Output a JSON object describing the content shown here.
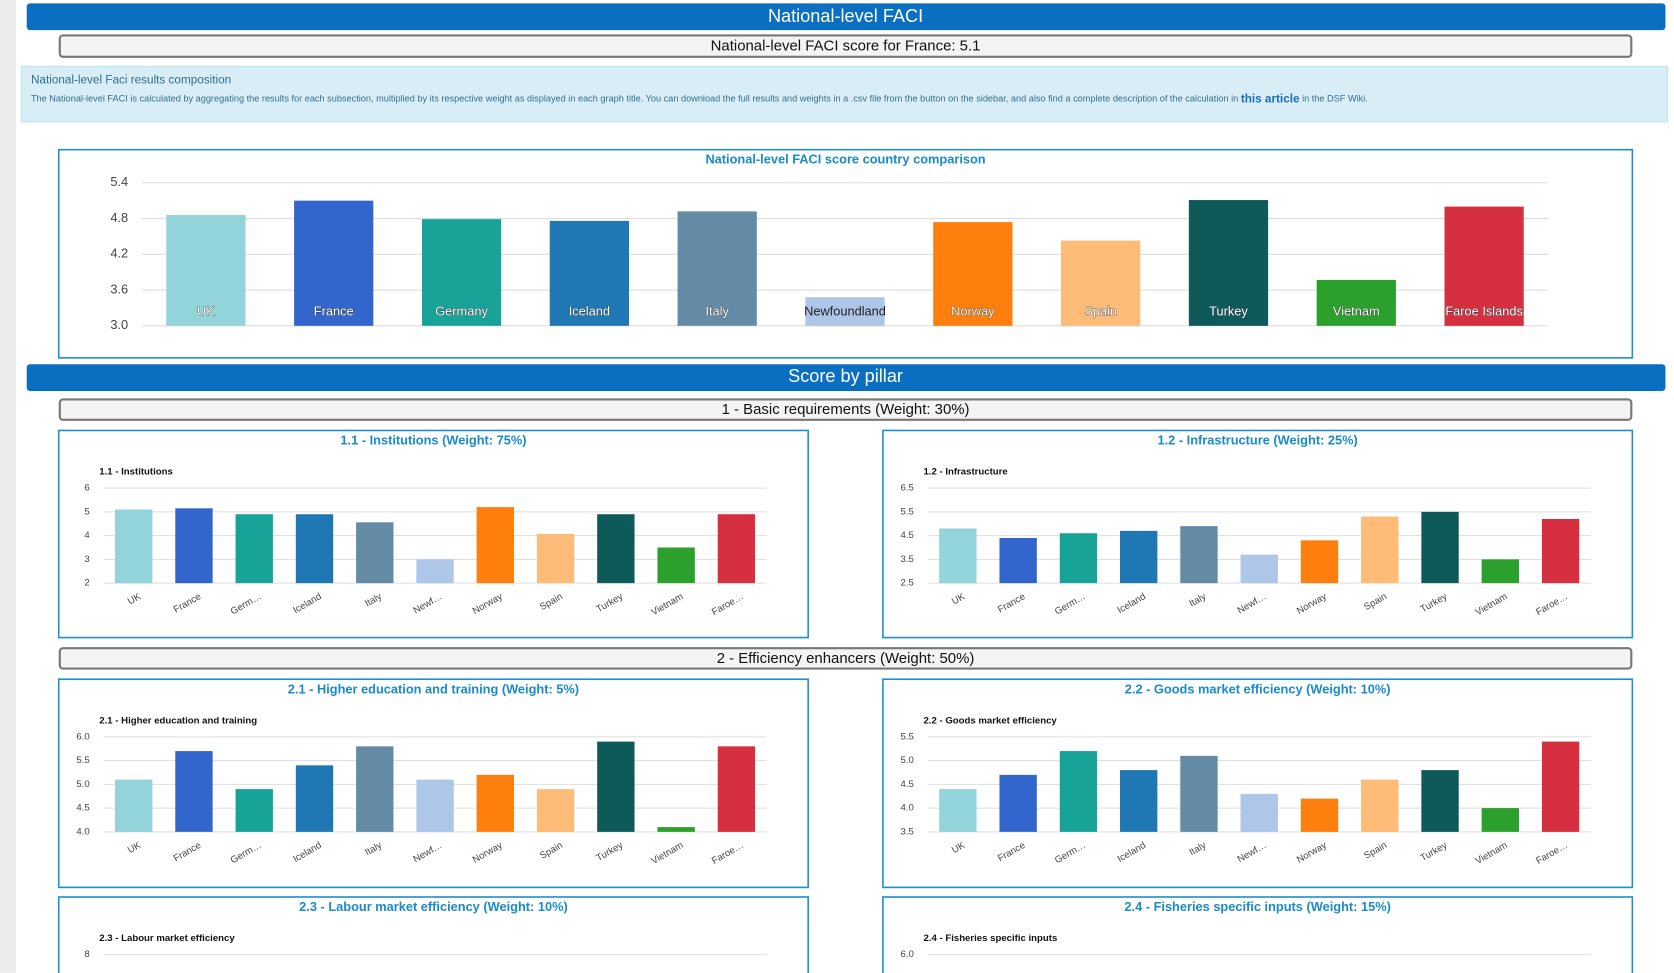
{
  "header": {
    "title": "National-level FACI",
    "subtitle": "National-level FACI score for France: 5.1"
  },
  "info": {
    "title": "National-level Faci results composition",
    "text_before": "The National-level FACI is calculated by aggregating the results for each subsection, multiplied by its respective weight as displayed in each graph title. You can download the full results and weights in a .csv file from the button on the sidebar, and also find a complete description of the calculation in ",
    "link": "this article",
    "text_after": " in the DSF Wiki."
  },
  "sections": {
    "title": "Score by pillar",
    "pillar_1": "1 - Basic requirements (Weight: 30%)",
    "pillar_2": "2 - Efficiency enhancers (Weight: 50%)"
  },
  "chart_data": [
    {
      "type": "bar",
      "title": "National-level FACI score country comparison",
      "categories": [
        "UK",
        "France",
        "Germany",
        "Iceland",
        "Italy",
        "Newfoundland",
        "Norway",
        "Spain",
        "Turkey",
        "Vietnam",
        "Faroe Islands"
      ],
      "values": [
        4.86,
        5.1,
        4.79,
        4.76,
        4.92,
        3.48,
        4.74,
        4.43,
        5.11,
        3.77,
        5.0
      ],
      "colors": [
        "#93d3da",
        "#3366cc",
        "#17a398",
        "#1f77b4",
        "#638ba6",
        "#aec7e8",
        "#ff7f0e",
        "#ffbb78",
        "#0e5a5a",
        "#2ca02c",
        "#d62f3f"
      ],
      "ylim": [
        3,
        5.4
      ],
      "yticks": [
        {
          "value": 3,
          "label": "3.0"
        },
        3.6,
        4.2,
        4.8,
        5.4
      ],
      "grid": true
    },
    {
      "type": "bar",
      "title": "1.1 - Institutions (Weight: 75%)",
      "subtitle": "1.1 - Institutions",
      "categories": [
        "UK",
        "France",
        "Germ…",
        "Iceland",
        "Italy",
        "Newf…",
        "Norway",
        "Spain",
        "Turkey",
        "Vietnam",
        "Faroe…"
      ],
      "values": [
        5.1,
        5.15,
        4.9,
        4.9,
        4.56,
        3.0,
        5.2,
        4.07,
        4.9,
        3.5,
        4.9
      ],
      "colors": [
        "#93d3da",
        "#3366cc",
        "#17a398",
        "#1f77b4",
        "#638ba6",
        "#aec7e8",
        "#ff7f0e",
        "#ffbb78",
        "#0e5a5a",
        "#2ca02c",
        "#d62f3f"
      ],
      "ylim": [
        2,
        6
      ],
      "yticks": [
        2,
        3,
        4,
        5,
        6
      ],
      "grid": true
    },
    {
      "type": "bar",
      "title": "1.2 - Infrastructure (Weight: 25%)",
      "subtitle": "1.2 - Infrastructure",
      "categories": [
        "UK",
        "France",
        "Germ…",
        "Iceland",
        "Italy",
        "Newf…",
        "Norway",
        "Spain",
        "Turkey",
        "Vietnam",
        "Faroe…"
      ],
      "values": [
        4.8,
        4.4,
        4.6,
        4.7,
        4.9,
        3.7,
        4.3,
        5.3,
        5.5,
        3.5,
        5.2
      ],
      "colors": [
        "#93d3da",
        "#3366cc",
        "#17a398",
        "#1f77b4",
        "#638ba6",
        "#aec7e8",
        "#ff7f0e",
        "#ffbb78",
        "#0e5a5a",
        "#2ca02c",
        "#d62f3f"
      ],
      "ylim": [
        2.5,
        6.5
      ],
      "yticks": [
        2.5,
        3.5,
        4.5,
        5.5,
        6.5
      ],
      "grid": true
    },
    {
      "type": "bar",
      "title": "2.1 - Higher education and training (Weight: 5%)",
      "subtitle": "2.1 - Higher education and training",
      "categories": [
        "UK",
        "France",
        "Germ…",
        "Iceland",
        "Italy",
        "Newf…",
        "Norway",
        "Spain",
        "Turkey",
        "Vietnam",
        "Faroe…"
      ],
      "values": [
        5.1,
        5.7,
        4.9,
        5.4,
        5.8,
        5.1,
        5.2,
        4.9,
        5.9,
        4.1,
        5.8
      ],
      "colors": [
        "#93d3da",
        "#3366cc",
        "#17a398",
        "#1f77b4",
        "#638ba6",
        "#aec7e8",
        "#ff7f0e",
        "#ffbb78",
        "#0e5a5a",
        "#2ca02c",
        "#d62f3f"
      ],
      "ylim": [
        4,
        6
      ],
      "yticks": [
        {
          "value": 4,
          "label": "4.0"
        },
        4.5,
        {
          "value": 5,
          "label": "5.0"
        },
        5.5,
        {
          "value": 6,
          "label": "6.0"
        }
      ],
      "grid": true
    },
    {
      "type": "bar",
      "title": "2.2 - Goods market efficiency (Weight: 10%)",
      "subtitle": "2.2 - Goods market efficiency",
      "categories": [
        "UK",
        "France",
        "Germ…",
        "Iceland",
        "Italy",
        "Newf…",
        "Norway",
        "Spain",
        "Turkey",
        "Vietnam",
        "Faroe…"
      ],
      "values": [
        4.4,
        4.7,
        5.2,
        4.8,
        5.1,
        4.3,
        4.2,
        4.6,
        4.8,
        4.0,
        5.4
      ],
      "colors": [
        "#93d3da",
        "#3366cc",
        "#17a398",
        "#1f77b4",
        "#638ba6",
        "#aec7e8",
        "#ff7f0e",
        "#ffbb78",
        "#0e5a5a",
        "#2ca02c",
        "#d62f3f"
      ],
      "ylim": [
        3.5,
        5.5
      ],
      "yticks": [
        3.5,
        {
          "value": 4,
          "label": "4.0"
        },
        4.5,
        {
          "value": 5,
          "label": "5.0"
        },
        5.5
      ],
      "grid": true
    },
    {
      "type": "bar",
      "title": "2.3 - Labour market efficiency (Weight: 10%)",
      "subtitle": "2.3 - Labour market efficiency",
      "yticks": [
        8
      ],
      "grid": true
    },
    {
      "type": "bar",
      "title": "2.4 - Fisheries specific inputs (Weight: 15%)",
      "subtitle": "2.4 - Fisheries specific inputs",
      "yticks": [
        {
          "value": 6,
          "label": "6.0"
        }
      ],
      "grid": true
    }
  ]
}
